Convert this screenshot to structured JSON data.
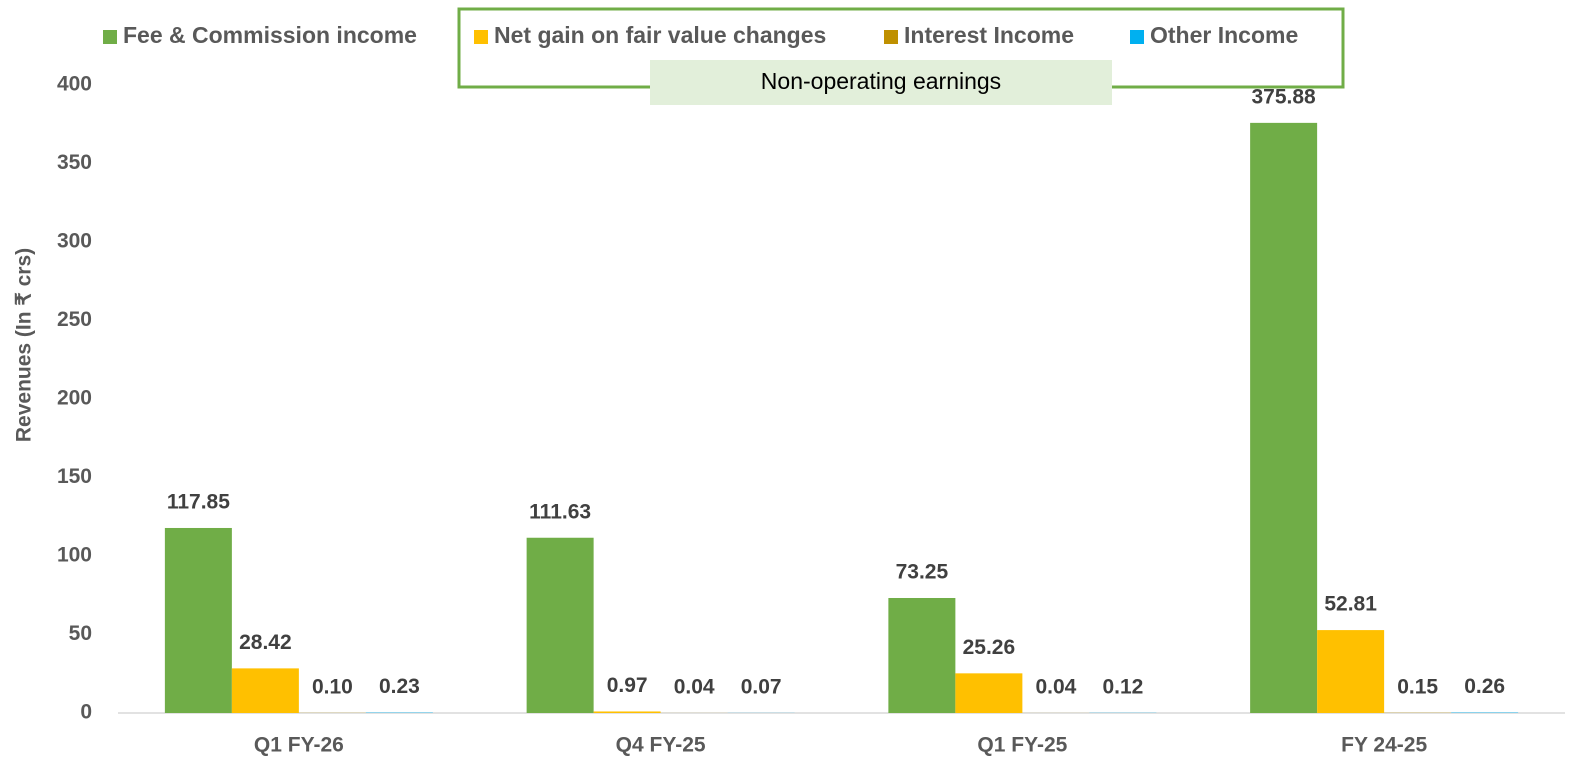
{
  "chart_data": {
    "type": "bar",
    "y_label": "Revenues (In ₹ crs)",
    "annotation": "Non-operating earnings",
    "categories": [
      "Q1 FY-26",
      "Q4 FY-25",
      "Q1 FY-25",
      "FY 24-25"
    ],
    "series": [
      {
        "name": "Fee & Commission income",
        "color": "#70ad47",
        "values": [
          117.85,
          111.63,
          73.25,
          375.88
        ],
        "value_labels": [
          "117.85",
          "111.63",
          "73.25",
          "375.88"
        ]
      },
      {
        "name": "Net gain on fair value changes",
        "color": "#ffc000",
        "values": [
          28.42,
          0.97,
          25.26,
          52.81
        ],
        "value_labels": [
          "28.42",
          "0.97",
          "25.26",
          "52.81"
        ]
      },
      {
        "name": "Interest Income",
        "color": "#bf9000",
        "values": [
          0.1,
          0.04,
          0.04,
          0.15
        ],
        "value_labels": [
          "0.10",
          "0.04",
          "0.04",
          "0.15"
        ]
      },
      {
        "name": "Other Income",
        "color": "#00b0f0",
        "values": [
          0.23,
          0.07,
          0.12,
          0.26
        ],
        "value_labels": [
          "0.23",
          "0.07",
          "0.12",
          "0.26"
        ]
      }
    ],
    "ylim": [
      0,
      400
    ],
    "yticks": [
      0,
      50,
      100,
      150,
      200,
      250,
      300,
      350,
      400
    ],
    "legend": "top",
    "grid": false
  }
}
